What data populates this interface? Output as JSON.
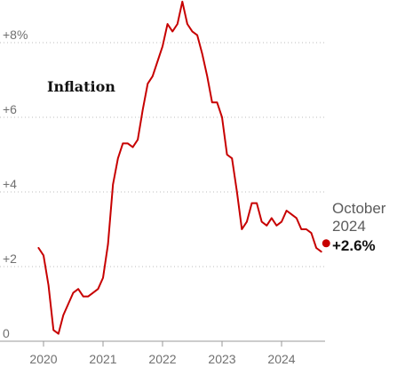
{
  "chart_data": {
    "type": "line",
    "title": "",
    "subtitle": "",
    "xlabel": "",
    "ylabel": "",
    "ylim": [
      0,
      9
    ],
    "xlim": [
      2019.83,
      2024.92
    ],
    "yticks": [
      {
        "value": 0,
        "label": "0"
      },
      {
        "value": 2,
        "label": "+2"
      },
      {
        "value": 4,
        "label": "+4"
      },
      {
        "value": 6,
        "label": "+6"
      },
      {
        "value": 8,
        "label": "+8%"
      }
    ],
    "xticks": [
      {
        "value": 2020,
        "label": "2020"
      },
      {
        "value": 2021,
        "label": "2021"
      },
      {
        "value": 2022,
        "label": "2022"
      },
      {
        "value": 2023,
        "label": "2023"
      },
      {
        "value": 2024,
        "label": "2024"
      }
    ],
    "grid": "horizontal-dotted",
    "series": [
      {
        "name": "Inflation",
        "color": "#c70000",
        "label_placement": "upper-left",
        "points": [
          [
            2019.917,
            2.5
          ],
          [
            2020.0,
            2.3
          ],
          [
            2020.083,
            1.5
          ],
          [
            2020.167,
            0.3
          ],
          [
            2020.25,
            0.2
          ],
          [
            2020.333,
            0.7
          ],
          [
            2020.417,
            1.0
          ],
          [
            2020.5,
            1.3
          ],
          [
            2020.583,
            1.4
          ],
          [
            2020.667,
            1.2
          ],
          [
            2020.75,
            1.2
          ],
          [
            2020.833,
            1.3
          ],
          [
            2020.917,
            1.4
          ],
          [
            2021.0,
            1.7
          ],
          [
            2021.083,
            2.6
          ],
          [
            2021.167,
            4.2
          ],
          [
            2021.25,
            4.9
          ],
          [
            2021.333,
            5.3
          ],
          [
            2021.417,
            5.3
          ],
          [
            2021.5,
            5.2
          ],
          [
            2021.583,
            5.4
          ],
          [
            2021.667,
            6.2
          ],
          [
            2021.75,
            6.9
          ],
          [
            2021.833,
            7.1
          ],
          [
            2021.917,
            7.5
          ],
          [
            2022.0,
            7.9
          ],
          [
            2022.083,
            8.5
          ],
          [
            2022.167,
            8.3
          ],
          [
            2022.25,
            8.5
          ],
          [
            2022.333,
            9.1
          ],
          [
            2022.417,
            8.5
          ],
          [
            2022.5,
            8.3
          ],
          [
            2022.583,
            8.2
          ],
          [
            2022.667,
            7.7
          ],
          [
            2022.75,
            7.1
          ],
          [
            2022.833,
            6.4
          ],
          [
            2022.917,
            6.4
          ],
          [
            2023.0,
            6.0
          ],
          [
            2023.083,
            5.0
          ],
          [
            2023.167,
            4.9
          ],
          [
            2023.25,
            4.0
          ],
          [
            2023.333,
            3.0
          ],
          [
            2023.417,
            3.2
          ],
          [
            2023.5,
            3.7
          ],
          [
            2023.583,
            3.7
          ],
          [
            2023.667,
            3.2
          ],
          [
            2023.75,
            3.1
          ],
          [
            2023.833,
            3.3
          ],
          [
            2023.917,
            3.1
          ],
          [
            2024.0,
            3.2
          ],
          [
            2024.083,
            3.5
          ],
          [
            2024.167,
            3.4
          ],
          [
            2024.25,
            3.3
          ],
          [
            2024.333,
            3.0
          ],
          [
            2024.417,
            3.0
          ],
          [
            2024.5,
            2.9
          ],
          [
            2024.583,
            2.5
          ],
          [
            2024.667,
            2.4
          ]
        ]
      }
    ],
    "annotations": [
      {
        "name": "series-title",
        "text": "Inflation"
      },
      {
        "name": "latest-month",
        "text": "October"
      },
      {
        "name": "latest-year",
        "text": "2024"
      },
      {
        "name": "latest-value",
        "text": "+2.6%",
        "x": 2024.75,
        "y": 2.6
      }
    ]
  }
}
